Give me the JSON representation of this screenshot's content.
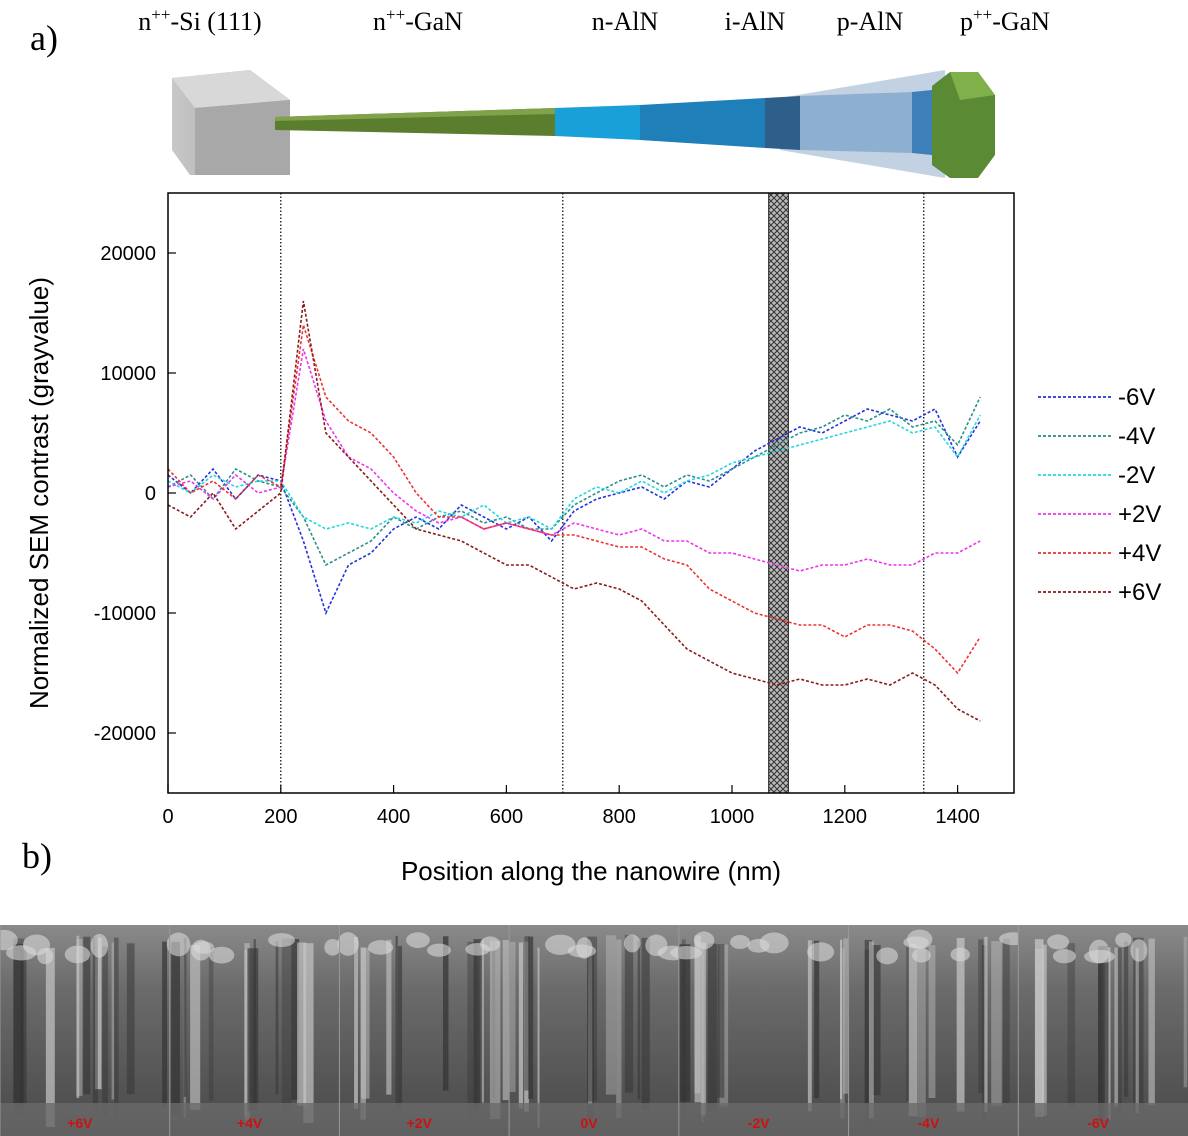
{
  "panel_labels": {
    "a": "a)",
    "b": "b)"
  },
  "layers": [
    {
      "prefix": "n",
      "sup": "++",
      "suffix": "-Si (111)"
    },
    {
      "prefix": "n",
      "sup": "++",
      "suffix": "-GaN"
    },
    {
      "prefix": "n-AlN"
    },
    {
      "prefix": "i-AlN"
    },
    {
      "prefix": "p-AlN"
    },
    {
      "prefix": "p",
      "sup": "++",
      "suffix": "-GaN"
    }
  ],
  "chart_data": {
    "type": "line",
    "x_label": "Position along the nanowire (nm)",
    "y_label": "Normalized SEM contrast (grayvalue)",
    "xlim": [
      0,
      1500
    ],
    "ylim": [
      -25000,
      25000
    ],
    "xticks": [
      0,
      200,
      400,
      600,
      800,
      1000,
      1200,
      1400
    ],
    "yticks": [
      -20000,
      -10000,
      0,
      10000,
      20000
    ],
    "vlines": [
      200,
      700,
      1340
    ],
    "hatched_band": [
      1065,
      1100
    ],
    "legend": "right",
    "x": [
      0,
      40,
      80,
      120,
      160,
      200,
      240,
      280,
      320,
      360,
      400,
      440,
      480,
      520,
      560,
      600,
      640,
      680,
      720,
      760,
      800,
      840,
      880,
      920,
      960,
      1000,
      1040,
      1080,
      1120,
      1160,
      1200,
      1240,
      1280,
      1320,
      1360,
      1400,
      1440
    ],
    "series": [
      {
        "name": "-6V",
        "color": "#2233dd",
        "values": [
          1500,
          0,
          2000,
          -500,
          1500,
          1000,
          -4000,
          -10000,
          -6000,
          -5000,
          -3000,
          -2000,
          -3000,
          -1000,
          -2000,
          -3000,
          -2000,
          -4000,
          -1500,
          -500,
          0,
          500,
          -500,
          1000,
          500,
          2000,
          3500,
          4500,
          5500,
          5000,
          6000,
          7000,
          6500,
          6000,
          7000,
          3000,
          6000
        ]
      },
      {
        "name": "-4V",
        "color": "#2a8f8a",
        "values": [
          500,
          1500,
          -500,
          2000,
          1000,
          500,
          -2000,
          -6000,
          -5000,
          -4000,
          -2000,
          -3000,
          -2000,
          -1500,
          -2500,
          -2000,
          -3000,
          -3000,
          -1000,
          0,
          1000,
          1500,
          500,
          1500,
          1000,
          2000,
          3000,
          4000,
          5000,
          5500,
          6500,
          6000,
          7000,
          5500,
          6000,
          4000,
          8000
        ]
      },
      {
        "name": "-2V",
        "color": "#22d8dd",
        "values": [
          1000,
          0,
          1500,
          500,
          1000,
          1000,
          -2000,
          -3000,
          -2500,
          -3000,
          -2000,
          -2500,
          -1500,
          -2000,
          -1000,
          -2500,
          -2000,
          -3000,
          -500,
          500,
          0,
          1000,
          0,
          1000,
          1500,
          2500,
          3000,
          3500,
          4000,
          4500,
          5000,
          5500,
          6000,
          5000,
          5500,
          3000,
          6500
        ]
      },
      {
        "name": "+2V",
        "color": "#ee33ee",
        "values": [
          500,
          1000,
          -500,
          1500,
          0,
          500,
          12000,
          6000,
          3000,
          2000,
          0,
          -1500,
          -2500,
          -2000,
          -3000,
          -2500,
          -3000,
          -3500,
          -2500,
          -3000,
          -3500,
          -3000,
          -4000,
          -4000,
          -5000,
          -5000,
          -5500,
          -6000,
          -6500,
          -6000,
          -6000,
          -5500,
          -6000,
          -6000,
          -5000,
          -5000,
          -4000
        ]
      },
      {
        "name": "+4V",
        "color": "#ee3333",
        "values": [
          2000,
          0,
          1000,
          -500,
          1500,
          500,
          14000,
          8000,
          6000,
          5000,
          3000,
          0,
          -2000,
          -2000,
          -3000,
          -2500,
          -3000,
          -3500,
          -3500,
          -4000,
          -4500,
          -4500,
          -5500,
          -6000,
          -8000,
          -9000,
          -10000,
          -10500,
          -11000,
          -11000,
          -12000,
          -11000,
          -11000,
          -11500,
          -13000,
          -15000,
          -12000
        ]
      },
      {
        "name": "+6V",
        "color": "#8b1a1a",
        "values": [
          -1000,
          -2000,
          0,
          -3000,
          -1500,
          0,
          16000,
          5000,
          3000,
          1000,
          -1000,
          -3000,
          -3500,
          -4000,
          -5000,
          -6000,
          -6000,
          -7000,
          -8000,
          -7500,
          -8000,
          -9000,
          -11000,
          -13000,
          -14000,
          -15000,
          -15500,
          -16000,
          -15500,
          -16000,
          -16000,
          -15500,
          -16000,
          -15000,
          -16000,
          -18000,
          -19000
        ]
      }
    ]
  },
  "sem_strip": {
    "labels": [
      "+6V",
      "+4V",
      "+2V",
      "0V",
      "-2V",
      "-4V",
      "-6V"
    ]
  }
}
